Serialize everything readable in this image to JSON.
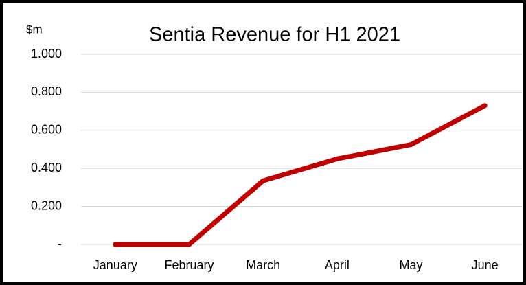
{
  "chart_data": {
    "type": "line",
    "title": "Sentia Revenue for H1 2021",
    "y_label": "$m",
    "categories": [
      "January",
      "February",
      "March",
      "April",
      "May",
      "June"
    ],
    "series": [
      {
        "name": "Revenue",
        "color": "#c00000",
        "values": [
          0,
          0,
          0.335,
          0.45,
          0.525,
          0.73
        ]
      }
    ],
    "ylim": [
      0,
      1
    ],
    "yticks": [
      {
        "value": 0,
        "label": "-"
      },
      {
        "value": 0.2,
        "label": "0.200"
      },
      {
        "value": 0.4,
        "label": "0.400"
      },
      {
        "value": 0.6,
        "label": "0.600"
      },
      {
        "value": 0.8,
        "label": "0.800"
      },
      {
        "value": 1,
        "label": "1.000"
      }
    ],
    "grid": true
  }
}
